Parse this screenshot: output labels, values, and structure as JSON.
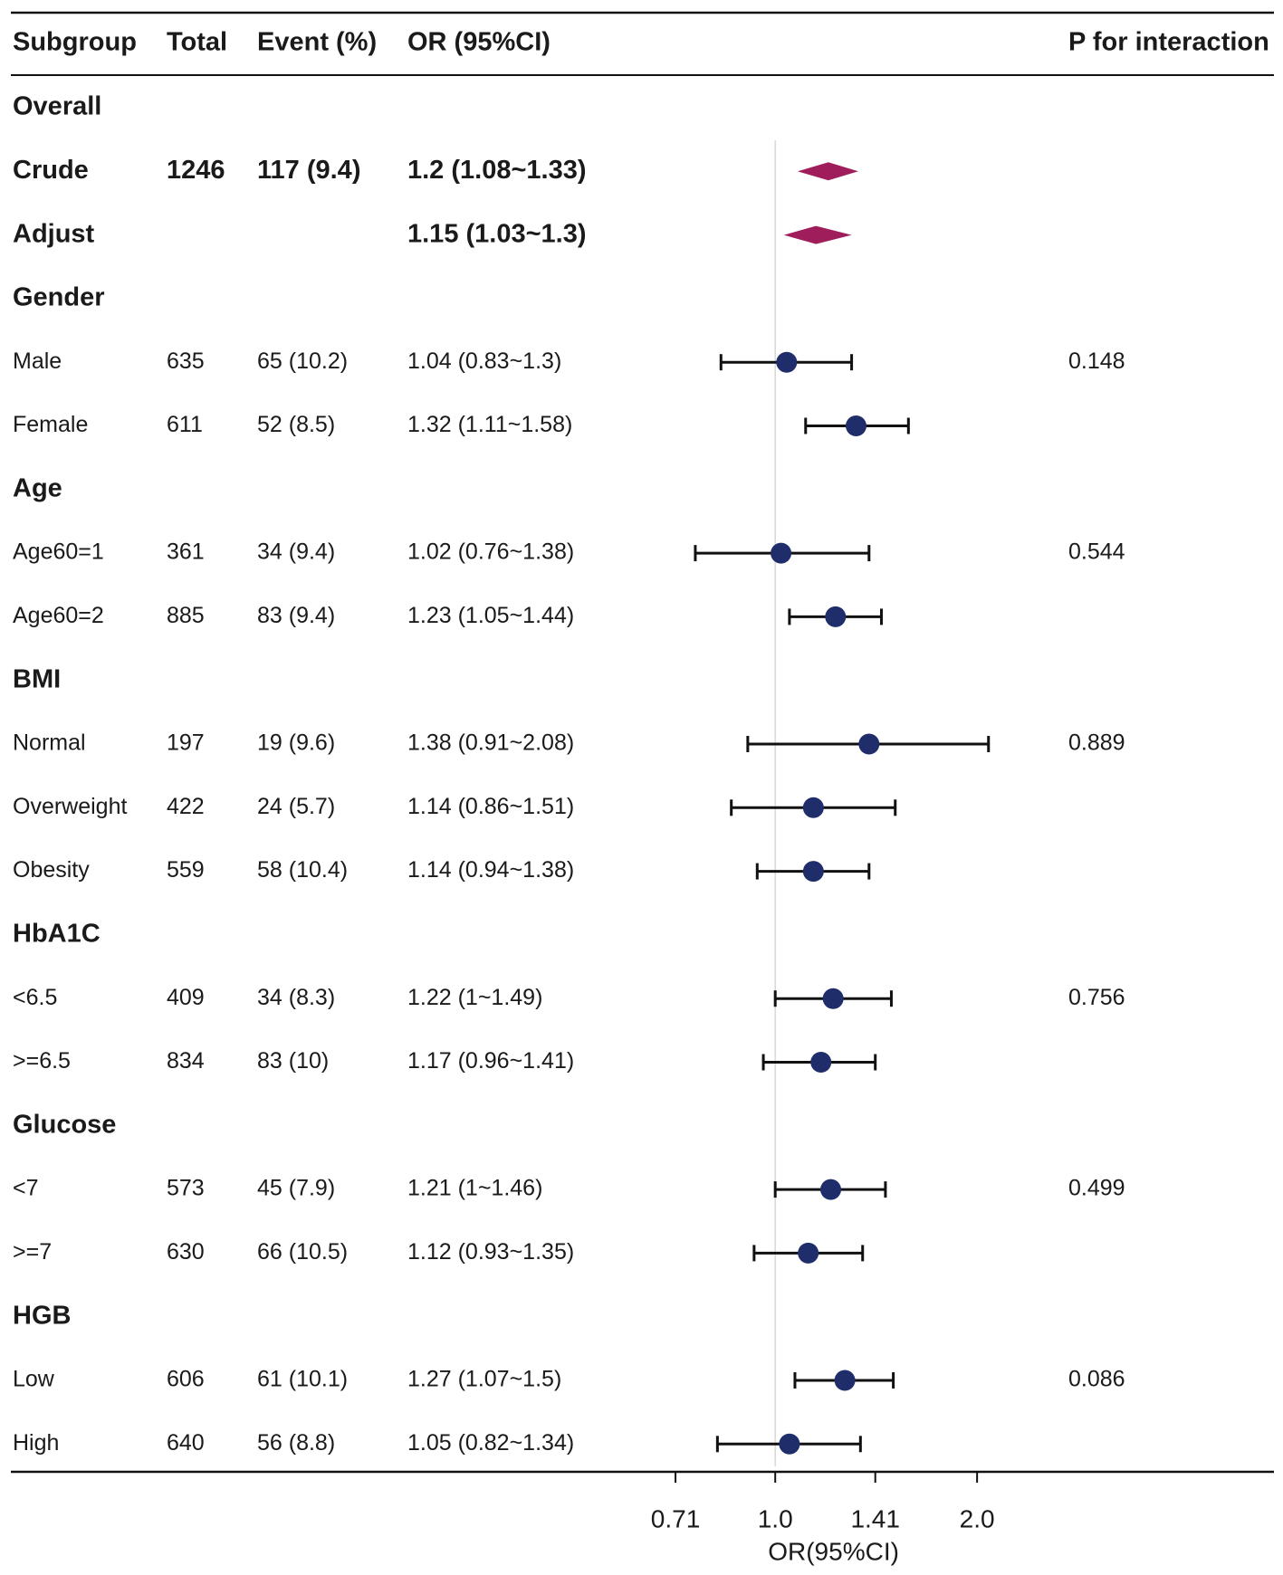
{
  "chart_data": {
    "type": "forest",
    "columns": [
      "Subgroup",
      "Total",
      "Event (%)",
      "OR (95%CI)",
      "P for interaction"
    ],
    "xlabel": "OR(95%CI)",
    "xscale": "log",
    "xlim": [
      0.58,
      2.35
    ],
    "xticks": [
      0.71,
      1.0,
      1.41,
      2.0
    ],
    "xtick_labels": [
      "0.71",
      "1.0",
      "1.41",
      "2.0"
    ],
    "reference_line": 1.0,
    "rows": [
      {
        "kind": "group",
        "label": "Overall"
      },
      {
        "kind": "summary",
        "label": "Crude",
        "total": "1246",
        "event": "117 (9.4)",
        "or_text": "1.2 (1.08~1.33)",
        "or": 1.2,
        "lo": 1.08,
        "hi": 1.33,
        "p": ""
      },
      {
        "kind": "summary",
        "label": "Adjust",
        "total": "",
        "event": "",
        "or_text": "1.15 (1.03~1.3)",
        "or": 1.15,
        "lo": 1.03,
        "hi": 1.3,
        "p": ""
      },
      {
        "kind": "group",
        "label": "Gender"
      },
      {
        "kind": "item",
        "label": "Male",
        "total": "635",
        "event": "65 (10.2)",
        "or_text": "1.04 (0.83~1.3)",
        "or": 1.04,
        "lo": 0.83,
        "hi": 1.3,
        "p": "0.148"
      },
      {
        "kind": "item",
        "label": "Female",
        "total": "611",
        "event": "52 (8.5)",
        "or_text": "1.32 (1.11~1.58)",
        "or": 1.32,
        "lo": 1.11,
        "hi": 1.58,
        "p": ""
      },
      {
        "kind": "group",
        "label": "Age"
      },
      {
        "kind": "item",
        "label": "Age60=1",
        "total": "361",
        "event": "34 (9.4)",
        "or_text": "1.02 (0.76~1.38)",
        "or": 1.02,
        "lo": 0.76,
        "hi": 1.38,
        "p": "0.544"
      },
      {
        "kind": "item",
        "label": "Age60=2",
        "total": "885",
        "event": "83 (9.4)",
        "or_text": "1.23 (1.05~1.44)",
        "or": 1.23,
        "lo": 1.05,
        "hi": 1.44,
        "p": ""
      },
      {
        "kind": "group",
        "label": "BMI"
      },
      {
        "kind": "item",
        "label": "Normal",
        "total": "197",
        "event": "19 (9.6)",
        "or_text": "1.38 (0.91~2.08)",
        "or": 1.38,
        "lo": 0.91,
        "hi": 2.08,
        "p": "0.889"
      },
      {
        "kind": "item",
        "label": "Overweight",
        "total": "422",
        "event": "24 (5.7)",
        "or_text": "1.14 (0.86~1.51)",
        "or": 1.14,
        "lo": 0.86,
        "hi": 1.51,
        "p": ""
      },
      {
        "kind": "item",
        "label": "Obesity",
        "total": "559",
        "event": "58 (10.4)",
        "or_text": "1.14 (0.94~1.38)",
        "or": 1.14,
        "lo": 0.94,
        "hi": 1.38,
        "p": ""
      },
      {
        "kind": "group",
        "label": "HbA1C"
      },
      {
        "kind": "item",
        "label": "<6.5",
        "total": "409",
        "event": "34 (8.3)",
        "or_text": "1.22 (1~1.49)",
        "or": 1.22,
        "lo": 1.0,
        "hi": 1.49,
        "p": "0.756"
      },
      {
        "kind": "item",
        "label": ">=6.5",
        "total": "834",
        "event": "83 (10)",
        "or_text": "1.17 (0.96~1.41)",
        "or": 1.17,
        "lo": 0.96,
        "hi": 1.41,
        "p": ""
      },
      {
        "kind": "group",
        "label": "Glucose"
      },
      {
        "kind": "item",
        "label": "<7",
        "total": "573",
        "event": "45 (7.9)",
        "or_text": "1.21 (1~1.46)",
        "or": 1.21,
        "lo": 1.0,
        "hi": 1.46,
        "p": "0.499"
      },
      {
        "kind": "item",
        "label": ">=7",
        "total": "630",
        "event": "66 (10.5)",
        "or_text": "1.12 (0.93~1.35)",
        "or": 1.12,
        "lo": 0.93,
        "hi": 1.35,
        "p": ""
      },
      {
        "kind": "group",
        "label": "HGB"
      },
      {
        "kind": "item",
        "label": "Low",
        "total": "606",
        "event": "61 (10.1)",
        "or_text": "1.27 (1.07~1.5)",
        "or": 1.27,
        "lo": 1.07,
        "hi": 1.5,
        "p": "0.086"
      },
      {
        "kind": "item",
        "label": "High",
        "total": "640",
        "event": "56 (8.8)",
        "or_text": "1.05 (0.82~1.34)",
        "or": 1.05,
        "lo": 0.82,
        "hi": 1.34,
        "p": ""
      }
    ],
    "colors": {
      "point": "#1f2d6b",
      "summary": "#a01d5c",
      "line": "#111111",
      "reference": "#d8d8d8",
      "text": "#1a1a1a"
    }
  }
}
